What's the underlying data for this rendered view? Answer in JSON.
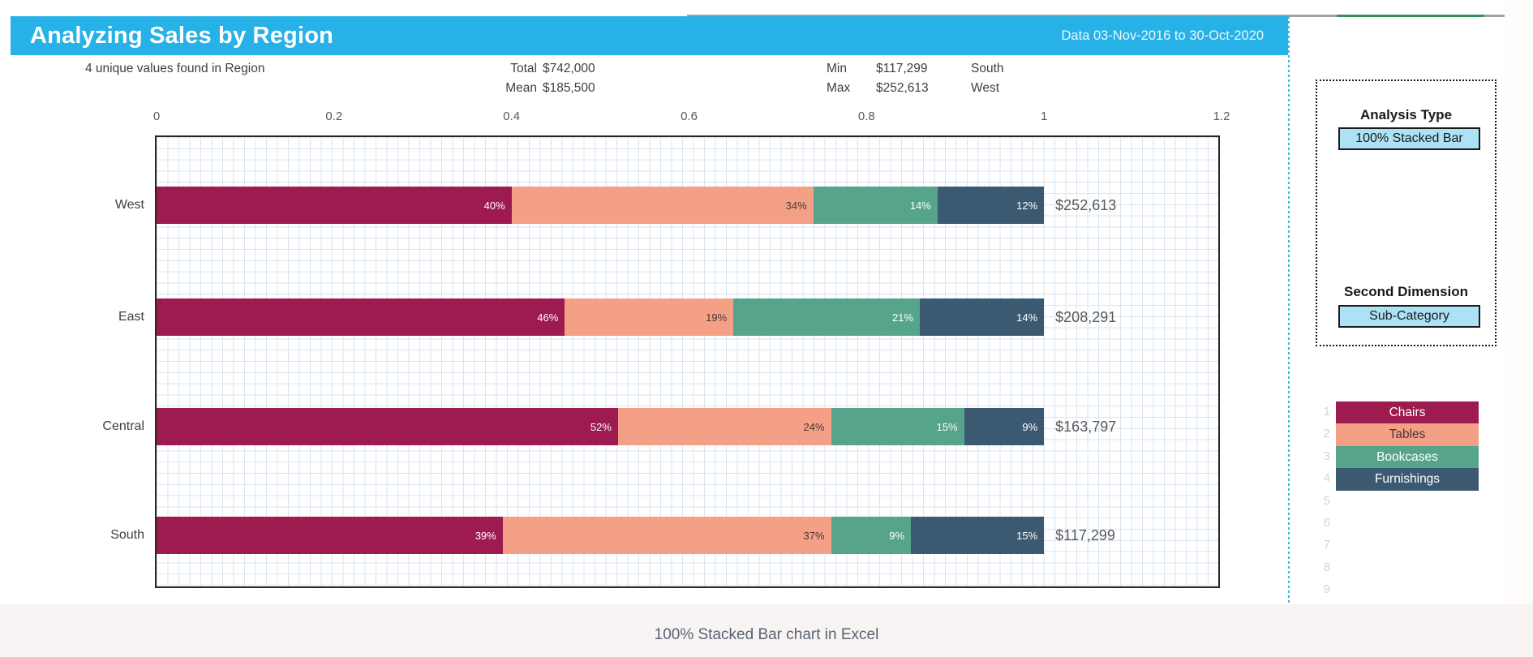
{
  "header": {
    "title": "Analyzing Sales by Region",
    "date_range": "Data 03-Nov-2016 to 30-Oct-2020"
  },
  "stats": {
    "unique_text": "4 unique values found in Region",
    "total_label": "Total",
    "total_value": "$742,000",
    "mean_label": "Mean",
    "mean_value": "$185,500",
    "min_label": "Min",
    "min_value": "$117,299",
    "min_region": "South",
    "max_label": "Max",
    "max_value": "$252,613",
    "max_region": "West"
  },
  "controls": {
    "analysis_type_label": "Analysis Type",
    "analysis_type_value": "100% Stacked Bar",
    "second_dimension_label": "Second Dimension",
    "second_dimension_value": "Sub-Category"
  },
  "row_numbers": [
    "1",
    "2",
    "3",
    "4",
    "5",
    "6",
    "7",
    "8",
    "9"
  ],
  "caption": "100% Stacked Bar chart in Excel",
  "colors": {
    "header_bg": "#27b2e7",
    "button_bg": "#ade2f6",
    "grid_line": "#d9e5f2"
  },
  "chart_data": {
    "type": "bar",
    "variant": "100%-stacked",
    "orientation": "horizontal",
    "title": "Analyzing Sales by Region",
    "categories": [
      "West",
      "East",
      "Central",
      "South"
    ],
    "series": [
      {
        "name": "Chairs",
        "color": "#9e1b50",
        "label_color": "#ffffff",
        "values": [
          40,
          46,
          52,
          39
        ]
      },
      {
        "name": "Tables",
        "color": "#f4a086",
        "label_color": "#4a3434",
        "values": [
          34,
          19,
          24,
          37
        ]
      },
      {
        "name": "Bookcases",
        "color": "#57a48c",
        "label_color": "#ffffff",
        "values": [
          14,
          21,
          15,
          9
        ]
      },
      {
        "name": "Furnishings",
        "color": "#3c5972",
        "label_color": "#ffffff",
        "values": [
          12,
          14,
          9,
          15
        ]
      }
    ],
    "category_totals": [
      "$252,613",
      "$208,291",
      "$163,797",
      "$117,299"
    ],
    "x_ticks": [
      "0",
      "0.2",
      "0.4",
      "0.6",
      "0.8",
      "1",
      "1.2"
    ],
    "xlim": [
      0,
      1.2
    ],
    "legend_position": "right",
    "grid": true
  }
}
